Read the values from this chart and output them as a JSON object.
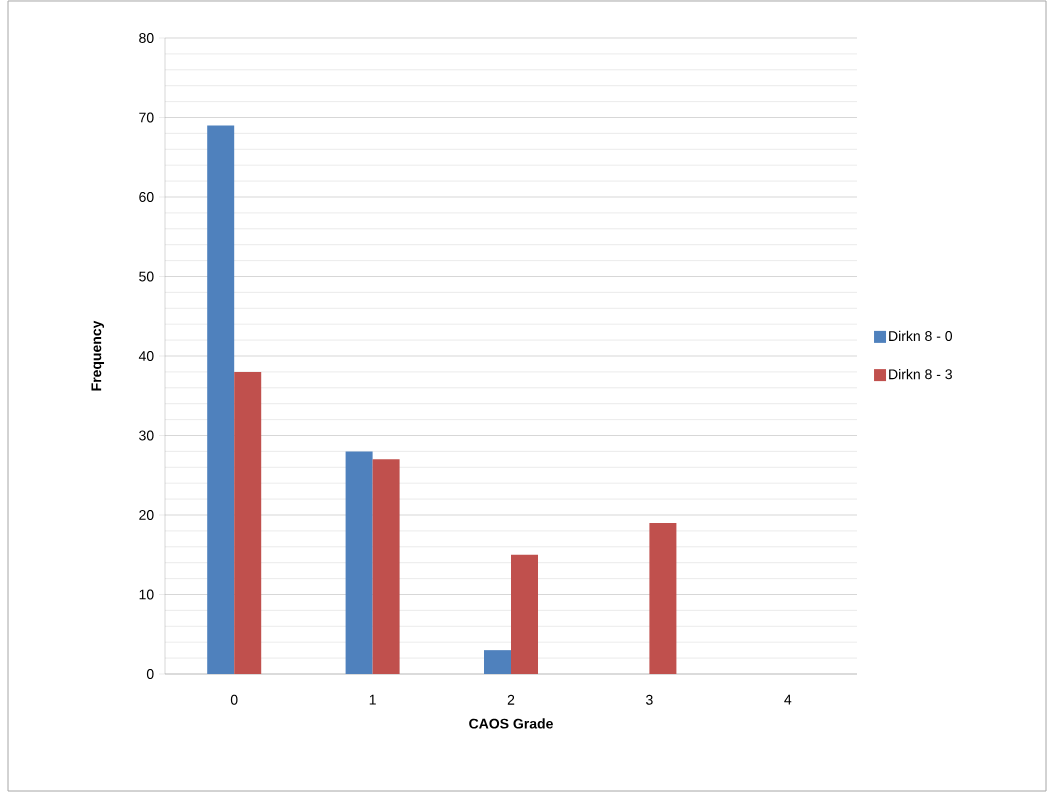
{
  "chart_data": {
    "type": "bar",
    "xlabel": "CAOS Grade",
    "ylabel": "Frequency",
    "categories": [
      "0",
      "1",
      "2",
      "3",
      "4"
    ],
    "series": [
      {
        "name": "Dirkn 8 - 0",
        "color": "#4f81bd",
        "values": [
          69,
          28,
          3,
          0,
          0
        ]
      },
      {
        "name": "Dirkn 8 - 3",
        "color": "#c0504d",
        "values": [
          38,
          27,
          15,
          19,
          0
        ]
      }
    ],
    "ylim": [
      0,
      80
    ],
    "yticks": [
      0,
      10,
      20,
      30,
      40,
      50,
      60,
      70,
      80
    ],
    "grid": "y",
    "legend": "right"
  }
}
